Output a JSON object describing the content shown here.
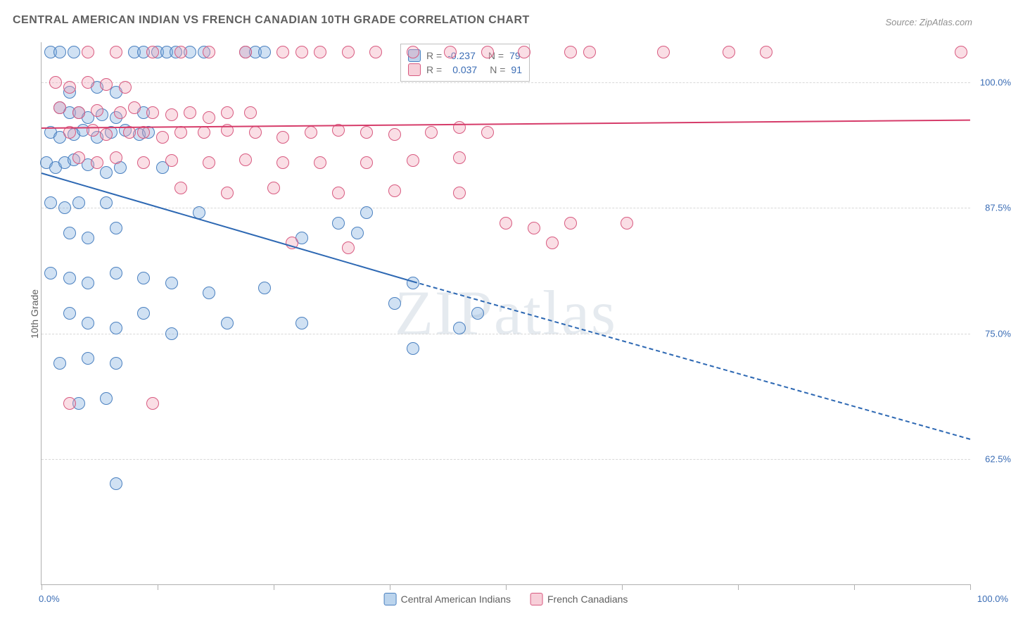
{
  "title": "CENTRAL AMERICAN INDIAN VS FRENCH CANADIAN 10TH GRADE CORRELATION CHART",
  "source": "Source: ZipAtlas.com",
  "ylabel": "10th Grade",
  "watermark": "ZIPatlas",
  "chart": {
    "type": "scatter",
    "xlim": [
      0,
      100
    ],
    "ylim": [
      50,
      104
    ],
    "x_min_label": "0.0%",
    "x_max_label": "100.0%",
    "y_grid": [
      62.5,
      75.0,
      87.5,
      100.0
    ],
    "y_grid_labels": [
      "62.5%",
      "75.0%",
      "87.5%",
      "100.0%"
    ],
    "x_ticks": [
      0,
      12.5,
      25,
      37.5,
      50,
      62.5,
      75,
      87.5,
      100
    ],
    "grid_color": "#d8d8d8",
    "axis_color": "#b0b0b0",
    "background_color": "#ffffff",
    "point_radius": 8,
    "series": [
      {
        "name": "Central American Indians",
        "color_fill": "rgba(120,170,220,0.35)",
        "color_stroke": "#4a80c0",
        "R": "-0.237",
        "N": "79",
        "trend": {
          "x1": 0,
          "y1": 91.0,
          "x2": 40,
          "y2": 80.2,
          "color": "#2d68b3",
          "solid_until_x": 40,
          "dash_to_x": 100,
          "dash_to_y": 64.5
        },
        "points": [
          [
            1,
            103
          ],
          [
            2,
            103
          ],
          [
            3.5,
            103
          ],
          [
            10,
            103
          ],
          [
            11,
            103
          ],
          [
            12.5,
            103
          ],
          [
            13.5,
            103
          ],
          [
            14.5,
            103
          ],
          [
            16,
            103
          ],
          [
            17.5,
            103
          ],
          [
            22,
            103
          ],
          [
            23,
            103
          ],
          [
            24,
            103
          ],
          [
            3,
            99
          ],
          [
            6,
            99.5
          ],
          [
            8,
            99
          ],
          [
            2,
            97.5
          ],
          [
            3,
            97
          ],
          [
            4,
            97
          ],
          [
            5,
            96.5
          ],
          [
            6.5,
            96.8
          ],
          [
            8,
            96.5
          ],
          [
            11,
            97
          ],
          [
            1,
            95
          ],
          [
            2,
            94.5
          ],
          [
            3.5,
            94.8
          ],
          [
            4.5,
            95.2
          ],
          [
            6,
            94.5
          ],
          [
            7.5,
            95
          ],
          [
            9,
            95.2
          ],
          [
            10.5,
            94.8
          ],
          [
            11.5,
            95
          ],
          [
            0.5,
            92
          ],
          [
            1.5,
            91.5
          ],
          [
            2.5,
            92
          ],
          [
            3.5,
            92.3
          ],
          [
            5,
            91.8
          ],
          [
            7,
            91
          ],
          [
            8.5,
            91.5
          ],
          [
            13,
            91.5
          ],
          [
            1,
            88
          ],
          [
            2.5,
            87.5
          ],
          [
            4,
            88
          ],
          [
            7,
            88
          ],
          [
            3,
            85
          ],
          [
            5,
            84.5
          ],
          [
            8,
            85.5
          ],
          [
            17,
            87
          ],
          [
            28,
            84.5
          ],
          [
            32,
            86
          ],
          [
            1,
            81
          ],
          [
            3,
            80.5
          ],
          [
            5,
            80
          ],
          [
            8,
            81
          ],
          [
            11,
            80.5
          ],
          [
            14,
            80
          ],
          [
            18,
            79
          ],
          [
            24,
            79.5
          ],
          [
            34,
            85
          ],
          [
            40,
            80
          ],
          [
            3,
            77
          ],
          [
            5,
            76
          ],
          [
            8,
            75.5
          ],
          [
            11,
            77
          ],
          [
            14,
            75
          ],
          [
            20,
            76
          ],
          [
            28,
            76
          ],
          [
            2,
            72
          ],
          [
            5,
            72.5
          ],
          [
            8,
            72
          ],
          [
            40,
            73.5
          ],
          [
            4,
            68
          ],
          [
            7,
            68.5
          ],
          [
            8,
            60
          ],
          [
            35,
            87
          ],
          [
            38,
            78
          ],
          [
            45,
            75.5
          ],
          [
            47,
            77
          ]
        ]
      },
      {
        "name": "French Canadians",
        "color_fill": "rgba(240,160,180,0.35)",
        "color_stroke": "#d85a80",
        "R": "0.037",
        "N": "91",
        "trend": {
          "x1": 0,
          "y1": 95.5,
          "x2": 100,
          "y2": 96.3,
          "color": "#d63c6a"
        },
        "points": [
          [
            5,
            103
          ],
          [
            8,
            103
          ],
          [
            12,
            103
          ],
          [
            15,
            103
          ],
          [
            18,
            103
          ],
          [
            22,
            103
          ],
          [
            26,
            103
          ],
          [
            28,
            103
          ],
          [
            30,
            103
          ],
          [
            33,
            103
          ],
          [
            36,
            103
          ],
          [
            40,
            103
          ],
          [
            44,
            103
          ],
          [
            48,
            103
          ],
          [
            52,
            103
          ],
          [
            57,
            103
          ],
          [
            59,
            103
          ],
          [
            67,
            103
          ],
          [
            74,
            103
          ],
          [
            78,
            103
          ],
          [
            99,
            103
          ],
          [
            1.5,
            100
          ],
          [
            3,
            99.5
          ],
          [
            5,
            100
          ],
          [
            7,
            99.8
          ],
          [
            9,
            99.5
          ],
          [
            2,
            97.5
          ],
          [
            4,
            97
          ],
          [
            6,
            97.2
          ],
          [
            8.5,
            97
          ],
          [
            10,
            97.5
          ],
          [
            12,
            97
          ],
          [
            14,
            96.8
          ],
          [
            16,
            97
          ],
          [
            18,
            96.5
          ],
          [
            20,
            97
          ],
          [
            22.5,
            97
          ],
          [
            3,
            95
          ],
          [
            5.5,
            95.2
          ],
          [
            7,
            94.8
          ],
          [
            9.5,
            95
          ],
          [
            11,
            95
          ],
          [
            13,
            94.5
          ],
          [
            15,
            95
          ],
          [
            17.5,
            95
          ],
          [
            20,
            95.2
          ],
          [
            23,
            95
          ],
          [
            26,
            94.5
          ],
          [
            29,
            95
          ],
          [
            32,
            95.2
          ],
          [
            35,
            95
          ],
          [
            38,
            94.8
          ],
          [
            42,
            95
          ],
          [
            45,
            95.5
          ],
          [
            48,
            95
          ],
          [
            4,
            92.5
          ],
          [
            6,
            92
          ],
          [
            8,
            92.5
          ],
          [
            11,
            92
          ],
          [
            14,
            92.2
          ],
          [
            18,
            92
          ],
          [
            22,
            92.3
          ],
          [
            26,
            92
          ],
          [
            30,
            92
          ],
          [
            35,
            92
          ],
          [
            40,
            92.2
          ],
          [
            45,
            92.5
          ],
          [
            15,
            89.5
          ],
          [
            20,
            89
          ],
          [
            25,
            89.5
          ],
          [
            32,
            89
          ],
          [
            38,
            89.2
          ],
          [
            45,
            89
          ],
          [
            27,
            84
          ],
          [
            33,
            83.5
          ],
          [
            50,
            86
          ],
          [
            53,
            85.5
          ],
          [
            57,
            86
          ],
          [
            55,
            84
          ],
          [
            63,
            86
          ],
          [
            3,
            68
          ],
          [
            12,
            68
          ]
        ]
      }
    ],
    "legend_bottom": [
      "Central American Indians",
      "French Canadians"
    ]
  }
}
